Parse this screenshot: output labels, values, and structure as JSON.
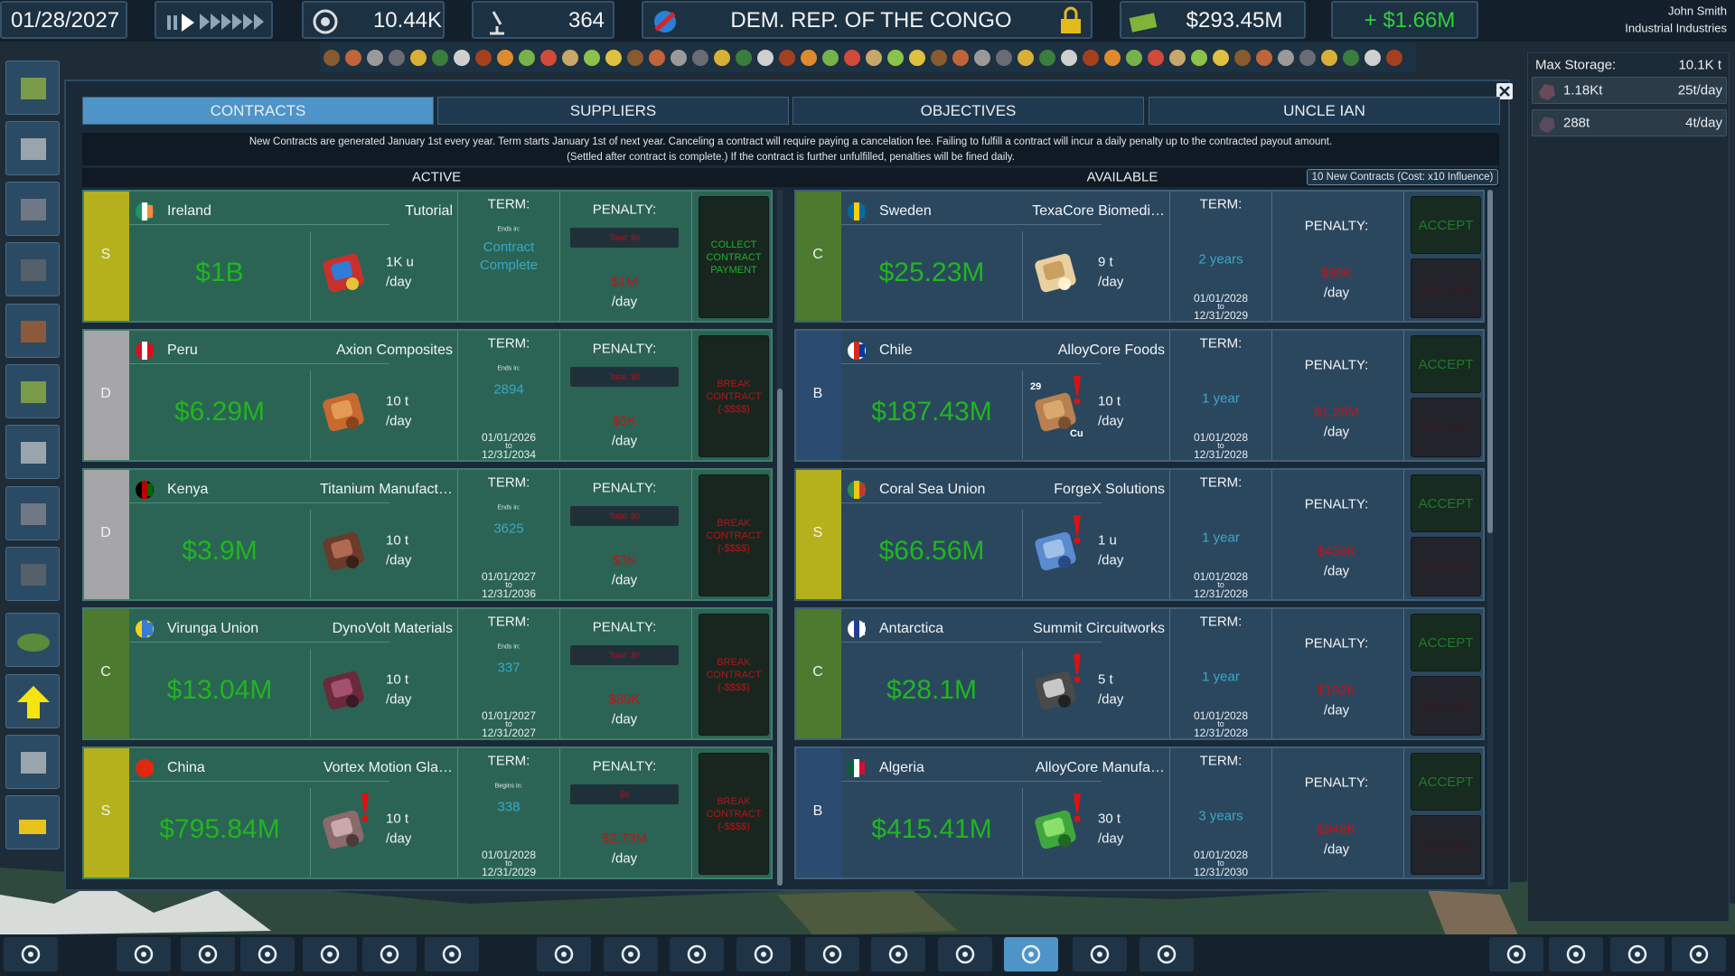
{
  "top_bar": {
    "date": "01/28/2027",
    "population": "10.44K",
    "research": "364",
    "country": "DEM. REP. OF THE CONGO",
    "money": "$293.45M",
    "income": "+ $1.66M",
    "user_name": "John Smith",
    "company": "Industrial Industries"
  },
  "storage": {
    "label": "Max Storage:",
    "max": "10.1K t",
    "rows": [
      {
        "amount": "1.18Kt",
        "rate": "25t/day"
      },
      {
        "amount": "288t",
        "rate": "4t/day"
      }
    ]
  },
  "tabs": [
    "CONTRACTS",
    "SUPPLIERS",
    "OBJECTIVES",
    "UNCLE IAN"
  ],
  "info": [
    "New Contracts are generated January 1st every year. Term starts January 1st of next year. Canceling a contract will require paying a cancelation fee. Failing to fulfill a contract will incur a daily penalty up to the contracted payout amount.",
    "(Settled after contract is complete.) If the contract is further unfulfilled, penalties will be fined daily."
  ],
  "labels": {
    "active": "ACTIVE",
    "available": "AVAILABLE",
    "new_contracts": "10 New Contracts (Cost: x10 Influence)",
    "term": "TERM:",
    "penalty": "PENALTY:",
    "per_day": "/day",
    "to": "to",
    "accept": "ACCEPT",
    "decline": "DECLINE"
  },
  "grade_colors": {
    "S": "#b5b11c",
    "D": "#a6a6a9",
    "C": "#4c7a2e",
    "B": "#2b4c70"
  },
  "active": [
    {
      "grade": "S",
      "country": "Ireland",
      "company": "Tutorial",
      "payout": "$1B",
      "quantity": "1K u",
      "term_note": "Ends in:",
      "term": "Contract Complete",
      "total": "Total: $0",
      "penalty": "$1M",
      "action": "COLLECT CONTRACT PAYMENT"
    },
    {
      "grade": "D",
      "country": "Peru",
      "company": "Axion Composites",
      "payout": "$6.29M",
      "quantity": "10 t",
      "term_note": "Ends in:",
      "term": "2894",
      "start": "01/01/2026",
      "end": "12/31/2034",
      "total": "Total: $0",
      "penalty": "$5K",
      "action": "BREAK CONTRACT (-$$$$)"
    },
    {
      "grade": "D",
      "country": "Kenya",
      "company": "Titanium Manufact…",
      "payout": "$3.9M",
      "quantity": "10 t",
      "term_note": "Ends in:",
      "term": "3625",
      "start": "01/01/2027",
      "end": "12/31/2036",
      "total": "Total: $0",
      "penalty": "$3K",
      "action": "BREAK CONTRACT (-$$$$)"
    },
    {
      "grade": "C",
      "country": "Virunga Union",
      "company": "DynoVolt Materials",
      "payout": "$13.04M",
      "quantity": "10 t",
      "term_note": "Ends in:",
      "term": "337",
      "start": "01/01/2027",
      "end": "12/31/2027",
      "total": "Total: $0",
      "penalty": "$89K",
      "action": "BREAK CONTRACT (-$$$$)"
    },
    {
      "grade": "S",
      "country": "China",
      "company": "Vortex Motion Gla…",
      "payout": "$795.84M",
      "quantity": "10 t",
      "alert": true,
      "term_note": "Begins in:",
      "term": "338",
      "start": "01/01/2028",
      "end": "12/31/2029",
      "total": "$0",
      "penalty": "$2.73M",
      "action": "BREAK CONTRACT (-$$$$)"
    }
  ],
  "available": [
    {
      "grade": "C",
      "country": "Sweden",
      "company": "TexaCore Biomedi…",
      "payout": "$25.23M",
      "quantity": "9 t",
      "term": "2 years",
      "start": "01/01/2028",
      "end": "12/31/2029",
      "penalty": "$86K"
    },
    {
      "grade": "B",
      "country": "Chile",
      "company": "AlloyCore Foods",
      "payout": "$187.43M",
      "quantity": "10 t",
      "alert": true,
      "icon_labels": [
        "29",
        "Cu"
      ],
      "term": "1 year",
      "start": "01/01/2028",
      "end": "12/31/2028",
      "penalty": "$1.28M"
    },
    {
      "grade": "S",
      "country": "Coral Sea Union",
      "company": "ForgeX Solutions",
      "payout": "$66.56M",
      "quantity": "1 u",
      "alert": true,
      "term": "1 year",
      "start": "01/01/2028",
      "end": "12/31/2028",
      "penalty": "$456K"
    },
    {
      "grade": "C",
      "country": "Antarctica",
      "company": "Summit Circuitworks",
      "payout": "$28.1M",
      "quantity": "5 t",
      "alert": true,
      "term": "1 year",
      "start": "01/01/2028",
      "end": "12/31/2028",
      "penalty": "$192K"
    },
    {
      "grade": "B",
      "country": "Algeria",
      "company": "AlloyCore Manufa…",
      "payout": "$415.41M",
      "quantity": "30 t",
      "alert": true,
      "term": "3 years",
      "start": "01/01/2028",
      "end": "12/31/2030",
      "penalty": "$948K"
    }
  ]
}
